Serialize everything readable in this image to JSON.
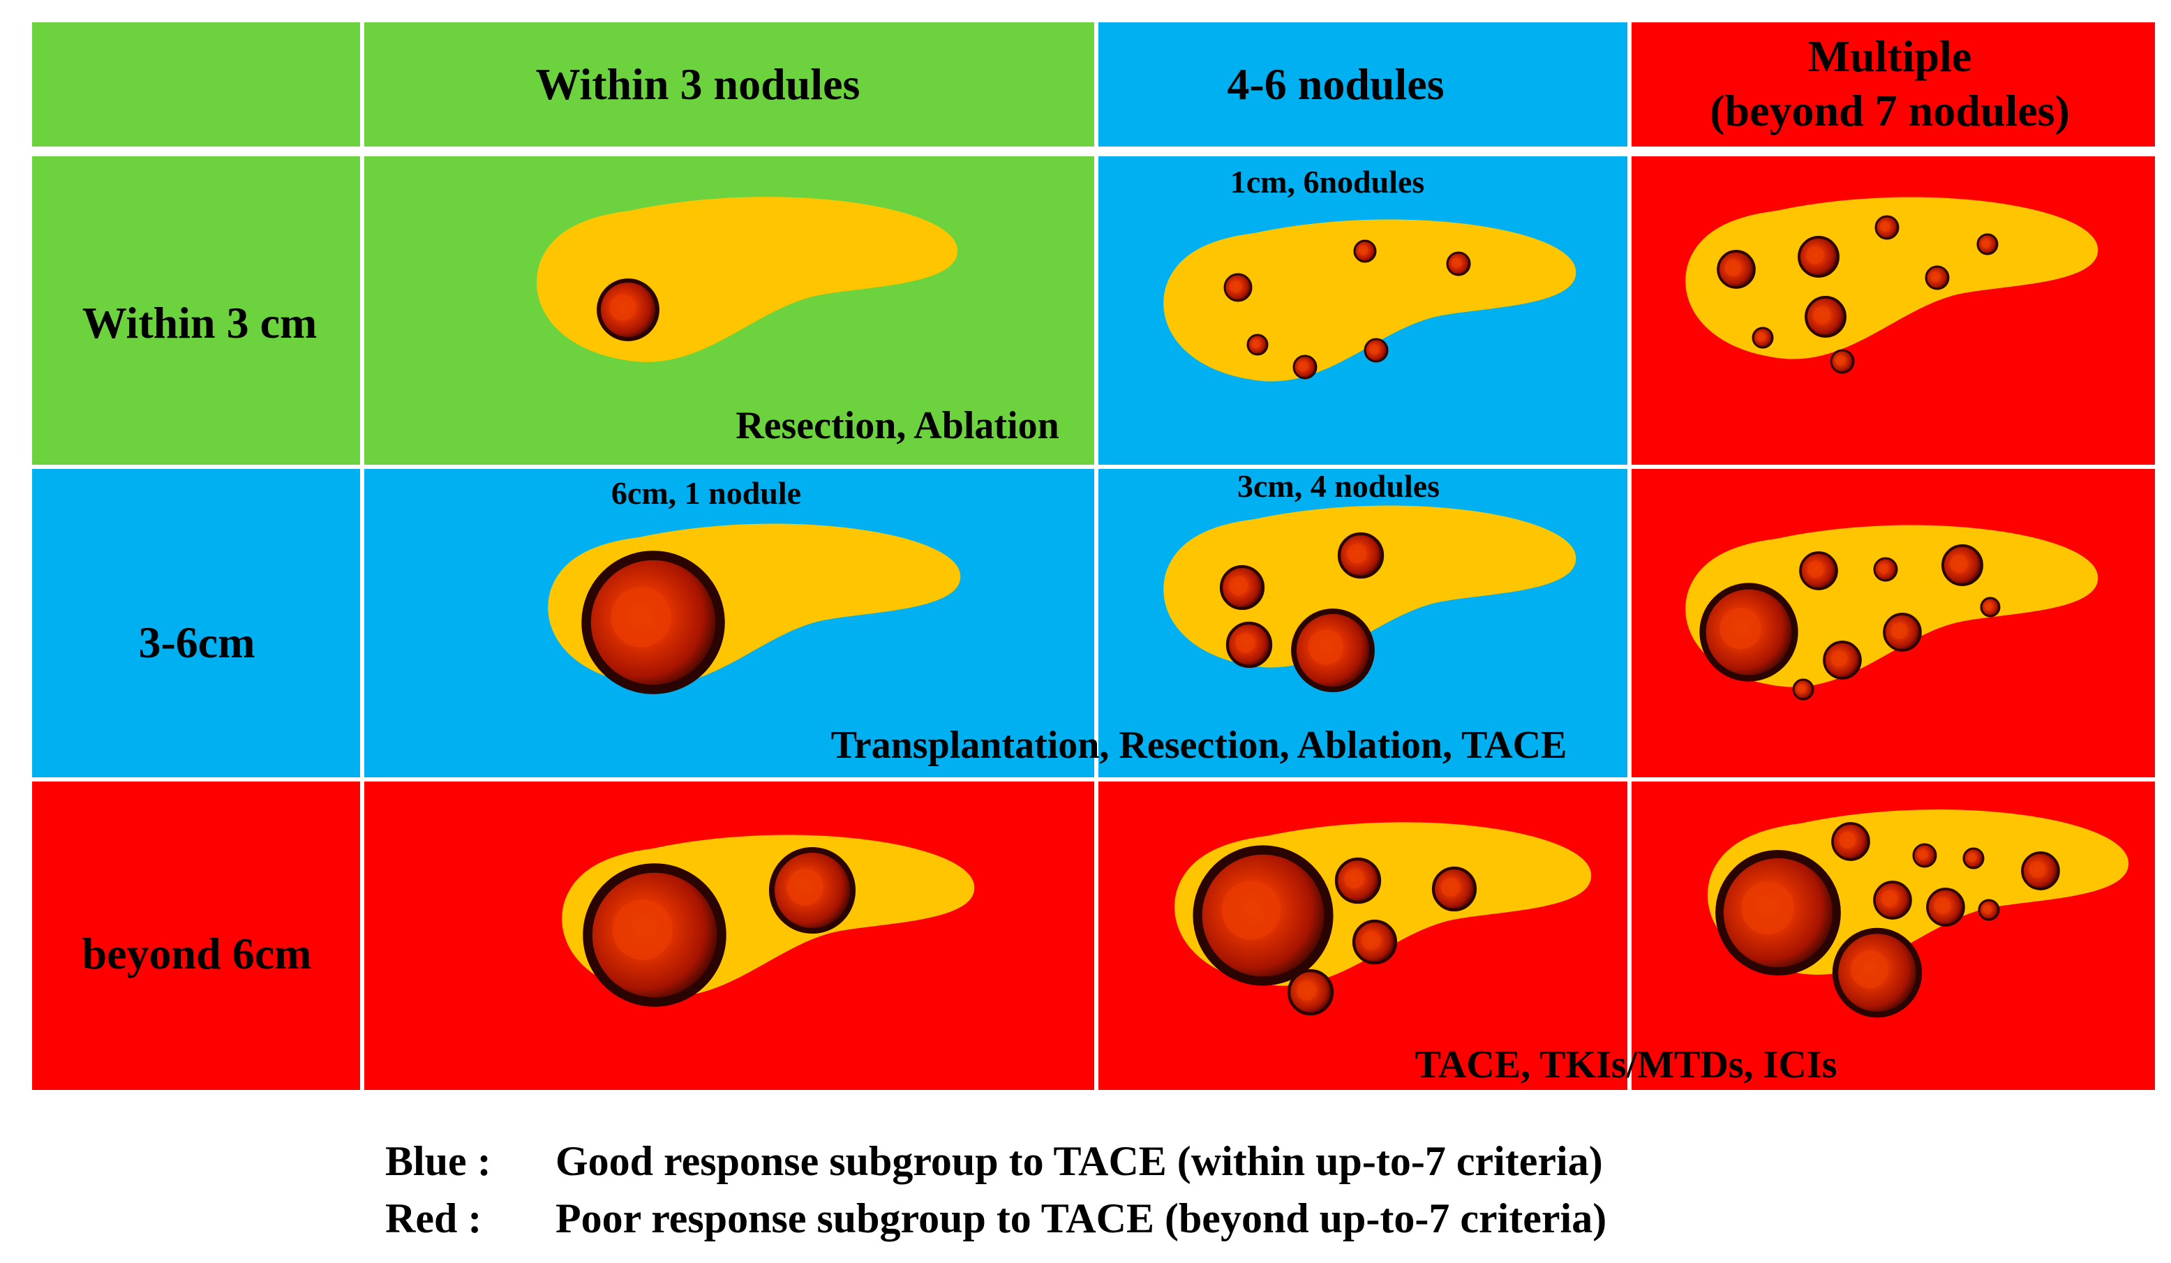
{
  "colors": {
    "green": "#6CD33F",
    "blue": "#00B0F0",
    "red": "#FF0000",
    "liver": "#FFC600",
    "nodule_dark": "#2A0400",
    "nodule_mid": "#B01800",
    "nodule_core": "#E83A00"
  },
  "columns": {
    "c1": "Within 3 nodules",
    "c2": "4-6 nodules",
    "c3_line1": "Multiple",
    "c3_line2": "(beyond 7 nodules)"
  },
  "rows": {
    "r1": "Within 3 cm",
    "r2": "3-6cm",
    "r3": "beyond 6cm"
  },
  "cell_notes": {
    "n1": "1cm, 6nodules",
    "n2": "6cm, 1 nodule",
    "n3": "3cm, 4 nodules"
  },
  "treatments": {
    "t1": "Resection, Ablation",
    "t2": "Transplantation, Resection, Ablation, TACE",
    "t3": "TACE, TKIs/MTDs, ICIs"
  },
  "legend": {
    "blue_key": "Blue :",
    "blue_text": "Good response subgroup to TACE (within up-to-7 criteria)",
    "red_key": "Red :",
    "red_text": "Poor response subgroup to TACE (beyond up-to-7 criteria)"
  }
}
